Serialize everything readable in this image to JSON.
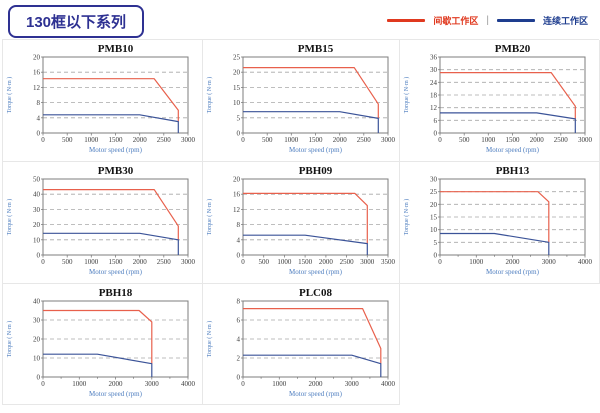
{
  "header": {
    "title": "130框以下系列",
    "legend": {
      "intermittent_label": "间歇工作区",
      "continuous_label": "连续工作区",
      "separator": "|",
      "intermittent_color": "#e0391f",
      "continuous_color": "#1e3d8f"
    }
  },
  "colors": {
    "red_line": "#e8604c",
    "blue_line": "#3b5398",
    "axis_label_blue": "#4d7dbf",
    "cell_border": "#e7e7e7",
    "title_box_blue": "#2e3192"
  },
  "chart_data": [
    {
      "type": "line",
      "title": "PMB10",
      "xlabel": "Motor speed (rpm)",
      "ylabel": "Torque ( N·m )",
      "xlim": [
        0,
        3000
      ],
      "xstep": 500,
      "ylim": [
        0,
        20
      ],
      "ystep": 4,
      "grid": "dashed-horizontal",
      "legend_position": "none",
      "series": [
        {
          "name": "间歇工作区",
          "color": "red",
          "points": [
            [
              0,
              14.3
            ],
            [
              2300,
              14.3
            ],
            [
              2800,
              6
            ],
            [
              2800,
              3
            ]
          ]
        },
        {
          "name": "连续工作区",
          "color": "blue",
          "points": [
            [
              0,
              4.8
            ],
            [
              2000,
              4.8
            ],
            [
              2800,
              3
            ],
            [
              2800,
              0
            ]
          ]
        }
      ]
    },
    {
      "type": "line",
      "title": "PMB15",
      "xlabel": "Motor speed (rpm)",
      "ylabel": "Torque ( N·m )",
      "xlim": [
        0,
        3000
      ],
      "xstep": 500,
      "ylim": [
        0,
        25
      ],
      "ystep": 5,
      "grid": "dashed-horizontal",
      "legend_position": "none",
      "series": [
        {
          "name": "间歇工作区",
          "color": "red",
          "points": [
            [
              0,
              21.5
            ],
            [
              2300,
              21.5
            ],
            [
              2800,
              9.5
            ],
            [
              2800,
              4.8
            ]
          ]
        },
        {
          "name": "连续工作区",
          "color": "blue",
          "points": [
            [
              0,
              7
            ],
            [
              2000,
              7
            ],
            [
              2800,
              4.8
            ],
            [
              2800,
              0
            ]
          ]
        }
      ]
    },
    {
      "type": "line",
      "title": "PMB20",
      "xlabel": "Motor speed (rpm)",
      "ylabel": "Torque ( N·m )",
      "xlim": [
        0,
        3000
      ],
      "xstep": 500,
      "ylim": [
        0,
        36
      ],
      "ystep": 6,
      "grid": "dashed-horizontal",
      "legend_position": "none",
      "series": [
        {
          "name": "间歇工作区",
          "color": "red",
          "points": [
            [
              0,
              28.6
            ],
            [
              2300,
              28.6
            ],
            [
              2800,
              12.7
            ],
            [
              2800,
              6.7
            ]
          ]
        },
        {
          "name": "连续工作区",
          "color": "blue",
          "points": [
            [
              0,
              9.5
            ],
            [
              2000,
              9.5
            ],
            [
              2800,
              6.7
            ],
            [
              2800,
              0
            ]
          ]
        }
      ]
    },
    {
      "type": "line",
      "title": "PMB30",
      "xlabel": "Motor speed (rpm)",
      "ylabel": "Torque ( N·m )",
      "xlim": [
        0,
        3000
      ],
      "xstep": 500,
      "ylim": [
        0,
        50
      ],
      "ystep": 10,
      "grid": "dashed-horizontal",
      "legend_position": "none",
      "series": [
        {
          "name": "间歇工作区",
          "color": "red",
          "points": [
            [
              0,
              43
            ],
            [
              2300,
              43
            ],
            [
              2800,
              19
            ],
            [
              2800,
              10
            ]
          ]
        },
        {
          "name": "连续工作区",
          "color": "blue",
          "points": [
            [
              0,
              14.3
            ],
            [
              2000,
              14.3
            ],
            [
              2800,
              10
            ],
            [
              2800,
              0
            ]
          ]
        }
      ]
    },
    {
      "type": "line",
      "title": "PBH09",
      "xlabel": "Motor speed (rpm)",
      "ylabel": "Torque ( N·m )",
      "xlim": [
        0,
        3500
      ],
      "xstep": 500,
      "ylim": [
        0,
        20
      ],
      "ystep": 4,
      "grid": "dashed-horizontal",
      "legend_position": "none",
      "series": [
        {
          "name": "间歇工作区",
          "color": "red",
          "points": [
            [
              0,
              16.2
            ],
            [
              2700,
              16.2
            ],
            [
              3000,
              13
            ],
            [
              3000,
              3
            ]
          ]
        },
        {
          "name": "连续工作区",
          "color": "blue",
          "points": [
            [
              0,
              5.2
            ],
            [
              1500,
              5.2
            ],
            [
              3000,
              3
            ],
            [
              3000,
              0
            ]
          ]
        }
      ]
    },
    {
      "type": "line",
      "title": "PBH13",
      "xlabel": "Motor speed (rpm)",
      "ylabel": "Torque ( N·m )",
      "xlim": [
        0,
        4000
      ],
      "xstep": 1000,
      "ylim": [
        0,
        30
      ],
      "ystep": 5,
      "grid": "dashed-horizontal",
      "legend_position": "none",
      "series": [
        {
          "name": "间歇工作区",
          "color": "red",
          "points": [
            [
              0,
              25
            ],
            [
              2700,
              25
            ],
            [
              3000,
              21
            ],
            [
              3000,
              5
            ]
          ]
        },
        {
          "name": "连续工作区",
          "color": "blue",
          "points": [
            [
              0,
              8.5
            ],
            [
              1500,
              8.5
            ],
            [
              3000,
              5
            ],
            [
              3000,
              0
            ]
          ]
        }
      ]
    },
    {
      "type": "line",
      "title": "PBH18",
      "xlabel": "Motor speed (rpm)",
      "ylabel": "Torque ( N·m )",
      "xlim": [
        0,
        4000
      ],
      "xstep": 1000,
      "ylim": [
        0,
        40
      ],
      "ystep": 10,
      "grid": "dashed-horizontal",
      "legend_position": "none",
      "series": [
        {
          "name": "间歇工作区",
          "color": "red",
          "points": [
            [
              0,
              35
            ],
            [
              2650,
              35
            ],
            [
              3000,
              29
            ],
            [
              3000,
              7
            ]
          ]
        },
        {
          "name": "连续工作区",
          "color": "blue",
          "points": [
            [
              0,
              12
            ],
            [
              1500,
              12
            ],
            [
              3000,
              7
            ],
            [
              3000,
              0
            ]
          ]
        }
      ]
    },
    {
      "type": "line",
      "title": "PLC08",
      "xlabel": "Motor speed (rpm)",
      "ylabel": "Torque ( N·m )",
      "xlim": [
        0,
        4000
      ],
      "xstep": 1000,
      "ylim": [
        0,
        8
      ],
      "ystep": 2,
      "grid": "dashed-horizontal",
      "legend_position": "none",
      "series": [
        {
          "name": "间歇工作区",
          "color": "red",
          "points": [
            [
              0,
              7.2
            ],
            [
              3300,
              7.2
            ],
            [
              3800,
              3
            ],
            [
              3800,
              1.4
            ]
          ]
        },
        {
          "name": "连续工作区",
          "color": "blue",
          "points": [
            [
              0,
              2.3
            ],
            [
              3000,
              2.3
            ],
            [
              3800,
              1.4
            ],
            [
              3800,
              0
            ]
          ]
        }
      ]
    }
  ]
}
